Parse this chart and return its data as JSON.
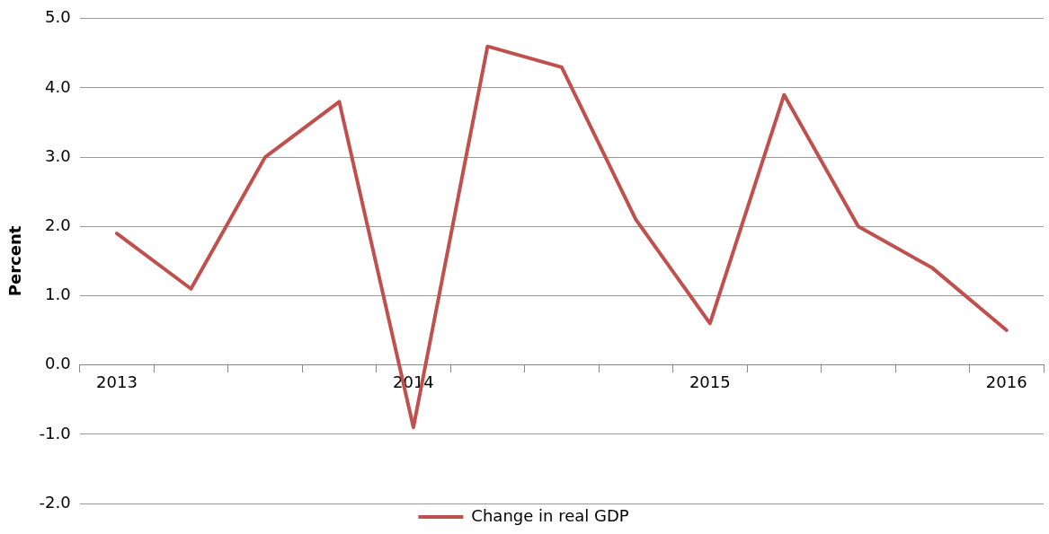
{
  "chart_data": {
    "type": "line",
    "ylabel": "Percent",
    "categories": [
      "2013",
      null,
      null,
      null,
      "2014",
      null,
      null,
      null,
      "2015",
      null,
      null,
      null,
      "2016"
    ],
    "series": [
      {
        "name": "Change in real GDP",
        "color": "#c0504d",
        "values": [
          1.9,
          1.1,
          3.0,
          3.8,
          -0.9,
          4.6,
          4.3,
          2.1,
          0.6,
          3.9,
          2.0,
          1.4,
          0.5
        ]
      }
    ],
    "ylim": [
      -2,
      5
    ],
    "yticks": [
      {
        "value": -2,
        "label": "-2.0"
      },
      {
        "value": -1,
        "label": "-1.0"
      },
      {
        "value": 0,
        "label": "0.0"
      },
      {
        "value": 1,
        "label": "1.0"
      },
      {
        "value": 2,
        "label": "2.0"
      },
      {
        "value": 3,
        "label": "3.0"
      },
      {
        "value": 4,
        "label": "4.0"
      },
      {
        "value": 5,
        "label": "5.0"
      }
    ],
    "grid": "y",
    "legend": "bottom",
    "marker": "none",
    "line_style": "solid"
  }
}
